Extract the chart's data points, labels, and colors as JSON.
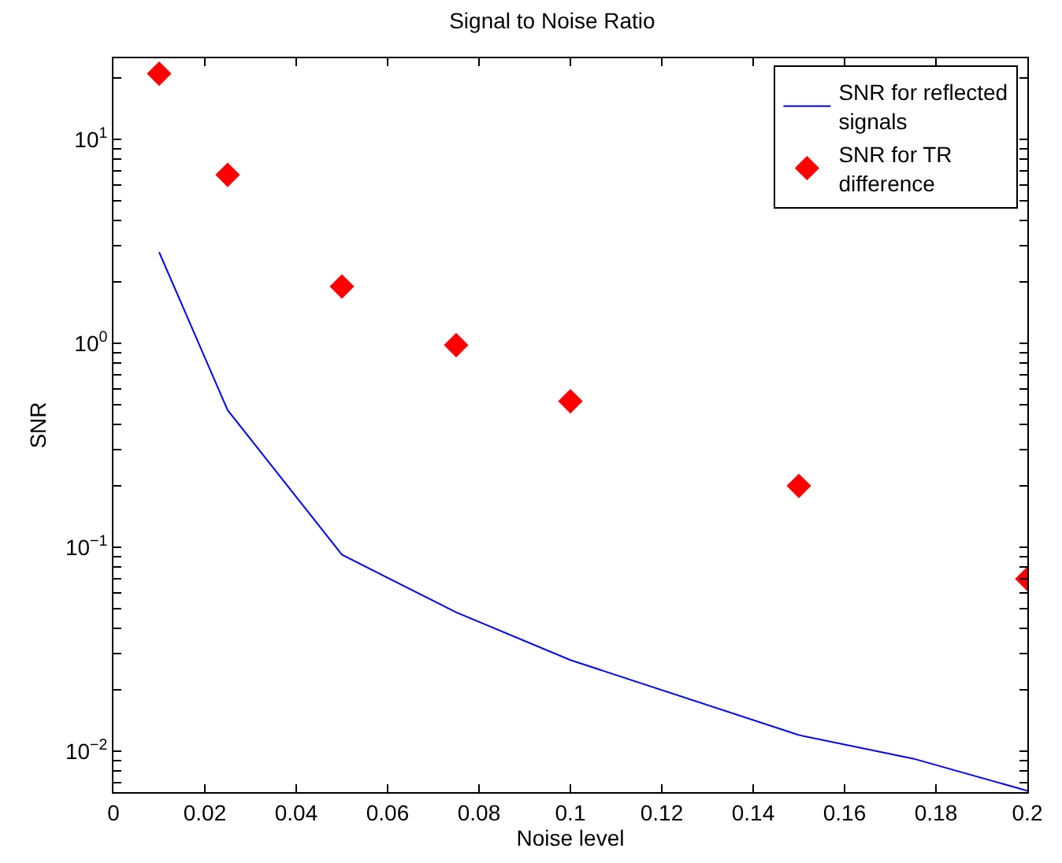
{
  "chart_data": {
    "type": "line",
    "title": "Signal to Noise Ratio",
    "xlabel": "Noise level",
    "ylabel": "SNR",
    "series": [
      {
        "name": "SNR for reflected signals",
        "color": "#0000ff",
        "marker": "none",
        "line_style": "solid",
        "x": [
          0.01,
          0.025,
          0.05,
          0.075,
          0.1,
          0.15,
          0.175,
          0.2
        ],
        "values": [
          2.8,
          0.47,
          0.092,
          0.048,
          0.028,
          0.012,
          0.0092,
          0.0064
        ]
      },
      {
        "name": "SNR for TR difference",
        "type": "scatter",
        "color": "#ff0000",
        "marker": "diamond",
        "x": [
          0.01,
          0.025,
          0.05,
          0.075,
          0.1,
          0.15,
          0.2
        ],
        "values": [
          21,
          6.7,
          1.9,
          0.98,
          0.52,
          0.2,
          0.07
        ]
      }
    ],
    "log": "y",
    "grid": false,
    "legend": "top right",
    "xlim": [
      0,
      0.2
    ],
    "xticks": [
      0,
      0.02,
      0.04,
      0.06,
      0.08,
      0.1,
      0.12,
      0.14,
      0.16,
      0.18,
      0.2
    ],
    "ylim": [
      0.0063,
      25
    ],
    "yticks": [
      {
        "value": 0.007,
        "label": null
      },
      {
        "value": 0.008,
        "label": null
      },
      {
        "value": 0.009,
        "label": null
      },
      {
        "value": 0.01,
        "label": "10$^{−2}$"
      },
      {
        "value": 0.02,
        "label": null
      },
      {
        "value": 0.03,
        "label": null
      },
      {
        "value": 0.04,
        "label": null
      },
      {
        "value": 0.05,
        "label": null
      },
      {
        "value": 0.06,
        "label": null
      },
      {
        "value": 0.07,
        "label": null
      },
      {
        "value": 0.08,
        "label": null
      },
      {
        "value": 0.09,
        "label": null
      },
      {
        "value": 0.1,
        "label": "10$^{−1}$"
      },
      {
        "value": 0.2,
        "label": null
      },
      {
        "value": 0.3,
        "label": null
      },
      {
        "value": 0.4,
        "label": null
      },
      {
        "value": 0.5,
        "label": null
      },
      {
        "value": 0.6,
        "label": null
      },
      {
        "value": 0.7,
        "label": null
      },
      {
        "value": 0.8,
        "label": null
      },
      {
        "value": 0.9,
        "label": null
      },
      {
        "value": 1,
        "label": "10$^{0}$"
      },
      {
        "value": 2,
        "label": null
      },
      {
        "value": 3,
        "label": null
      },
      {
        "value": 4,
        "label": null
      },
      {
        "value": 5,
        "label": null
      },
      {
        "value": 6,
        "label": null
      },
      {
        "value": 7,
        "label": null
      },
      {
        "value": 8,
        "label": null
      },
      {
        "value": 9,
        "label": null
      },
      {
        "value": 10,
        "label": "10$^{1}$"
      },
      {
        "value": 20,
        "label": null
      }
    ]
  }
}
